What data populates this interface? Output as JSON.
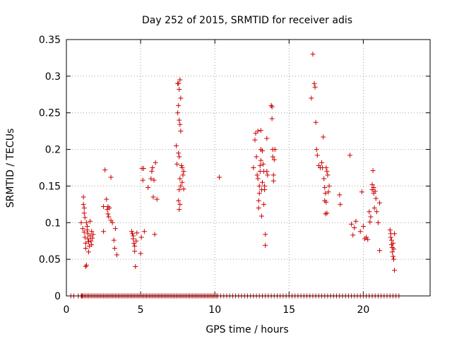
{
  "chart_data": {
    "type": "scatter",
    "title": "Day 252 of 2015, SRMTID for receiver adis",
    "xlabel": "GPS time / hours",
    "ylabel": "SRMTID / TECUs",
    "xlim": [
      0,
      24.5
    ],
    "ylim": [
      0,
      0.35
    ],
    "x_ticks": [
      0,
      5,
      10,
      15,
      20
    ],
    "x_tick_labels": [
      "0",
      "5",
      "10",
      "15",
      "20"
    ],
    "y_ticks": [
      0,
      0.05,
      0.1,
      0.15,
      0.2,
      0.25,
      0.3,
      0.35
    ],
    "y_tick_labels": [
      "0",
      "0.05",
      "0.1",
      "0.15",
      "0.2",
      "0.25",
      "0.3",
      "0.35"
    ],
    "grid": true,
    "marker": "+",
    "color": "#cc0000",
    "series": [
      {
        "name": "SRMTID",
        "points": [
          [
            1.0,
            0.1
          ],
          [
            1.1,
            0.092
          ],
          [
            1.15,
            0.135
          ],
          [
            1.15,
            0.125
          ],
          [
            1.2,
            0.12
          ],
          [
            1.2,
            0.113
          ],
          [
            1.25,
            0.107
          ],
          [
            1.2,
            0.087
          ],
          [
            1.25,
            0.08
          ],
          [
            1.3,
            0.072
          ],
          [
            1.3,
            0.065
          ],
          [
            1.3,
            0.04
          ],
          [
            1.35,
            0.042
          ],
          [
            1.35,
            0.1
          ],
          [
            1.4,
            0.095
          ],
          [
            1.4,
            0.09
          ],
          [
            1.45,
            0.085
          ],
          [
            1.45,
            0.078
          ],
          [
            1.5,
            0.074
          ],
          [
            1.5,
            0.06
          ],
          [
            1.55,
            0.068
          ],
          [
            1.6,
            0.102
          ],
          [
            1.6,
            0.082
          ],
          [
            1.65,
            0.075
          ],
          [
            1.7,
            0.088
          ],
          [
            1.7,
            0.07
          ],
          [
            1.75,
            0.079
          ],
          [
            1.8,
            0.084
          ],
          [
            2.5,
            0.122
          ],
          [
            2.6,
            0.172
          ],
          [
            2.7,
            0.132
          ],
          [
            2.75,
            0.118
          ],
          [
            2.8,
            0.122
          ],
          [
            2.8,
            0.112
          ],
          [
            2.85,
            0.108
          ],
          [
            2.9,
            0.12
          ],
          [
            3.0,
            0.162
          ],
          [
            3.0,
            0.103
          ],
          [
            3.1,
            0.1
          ],
          [
            3.2,
            0.076
          ],
          [
            3.25,
            0.065
          ],
          [
            3.3,
            0.092
          ],
          [
            3.4,
            0.056
          ],
          [
            2.5,
            0.088
          ],
          [
            4.4,
            0.088
          ],
          [
            4.45,
            0.085
          ],
          [
            4.5,
            0.082
          ],
          [
            4.5,
            0.078
          ],
          [
            4.55,
            0.072
          ],
          [
            4.6,
            0.068
          ],
          [
            4.6,
            0.061
          ],
          [
            4.65,
            0.04
          ],
          [
            4.7,
            0.075
          ],
          [
            4.75,
            0.086
          ],
          [
            5.0,
            0.058
          ],
          [
            5.05,
            0.08
          ],
          [
            5.1,
            0.174
          ],
          [
            5.15,
            0.158
          ],
          [
            5.2,
            0.174
          ],
          [
            5.25,
            0.088
          ],
          [
            5.5,
            0.148
          ],
          [
            5.7,
            0.16
          ],
          [
            5.75,
            0.17
          ],
          [
            5.8,
            0.175
          ],
          [
            5.85,
            0.135
          ],
          [
            5.9,
            0.158
          ],
          [
            5.95,
            0.084
          ],
          [
            6.0,
            0.182
          ],
          [
            6.1,
            0.132
          ],
          [
            7.4,
            0.205
          ],
          [
            7.45,
            0.18
          ],
          [
            7.5,
            0.29
          ],
          [
            7.5,
            0.25
          ],
          [
            7.55,
            0.29
          ],
          [
            7.55,
            0.26
          ],
          [
            7.6,
            0.282
          ],
          [
            7.6,
            0.24
          ],
          [
            7.65,
            0.295
          ],
          [
            7.65,
            0.234
          ],
          [
            7.7,
            0.27
          ],
          [
            7.7,
            0.225
          ],
          [
            7.55,
            0.195
          ],
          [
            7.6,
            0.19
          ],
          [
            7.65,
            0.16
          ],
          [
            7.7,
            0.15
          ],
          [
            7.75,
            0.178
          ],
          [
            7.8,
            0.175
          ],
          [
            7.8,
            0.155
          ],
          [
            7.85,
            0.165
          ],
          [
            7.9,
            0.146
          ],
          [
            7.9,
            0.17
          ],
          [
            7.55,
            0.13
          ],
          [
            7.6,
            0.118
          ],
          [
            7.65,
            0.125
          ],
          [
            7.6,
            0.145
          ],
          [
            10.3,
            0.162
          ],
          [
            12.6,
            0.175
          ],
          [
            12.7,
            0.213
          ],
          [
            12.75,
            0.222
          ],
          [
            12.8,
            0.19
          ],
          [
            12.85,
            0.165
          ],
          [
            12.9,
            0.225
          ],
          [
            12.9,
            0.16
          ],
          [
            12.95,
            0.13
          ],
          [
            12.95,
            0.12
          ],
          [
            13.0,
            0.15
          ],
          [
            13.0,
            0.14
          ],
          [
            13.05,
            0.17
          ],
          [
            13.05,
            0.178
          ],
          [
            13.1,
            0.185
          ],
          [
            13.1,
            0.226
          ],
          [
            13.1,
            0.2
          ],
          [
            13.15,
            0.145
          ],
          [
            13.15,
            0.109
          ],
          [
            13.2,
            0.198
          ],
          [
            13.2,
            0.155
          ],
          [
            13.25,
            0.18
          ],
          [
            13.3,
            0.17
          ],
          [
            13.35,
            0.15
          ],
          [
            13.35,
            0.145
          ],
          [
            13.4,
            0.084
          ],
          [
            13.4,
            0.069
          ],
          [
            13.5,
            0.215
          ],
          [
            13.5,
            0.17
          ],
          [
            13.55,
            0.165
          ],
          [
            13.8,
            0.26
          ],
          [
            13.85,
            0.258
          ],
          [
            13.85,
            0.242
          ],
          [
            13.9,
            0.2
          ],
          [
            13.9,
            0.19
          ],
          [
            13.95,
            0.165
          ],
          [
            13.95,
            0.157
          ],
          [
            14.0,
            0.186
          ],
          [
            14.05,
            0.2
          ],
          [
            13.3,
            0.125
          ],
          [
            16.5,
            0.27
          ],
          [
            16.6,
            0.33
          ],
          [
            16.7,
            0.29
          ],
          [
            16.75,
            0.285
          ],
          [
            16.8,
            0.237
          ],
          [
            16.85,
            0.2
          ],
          [
            16.9,
            0.192
          ],
          [
            17.0,
            0.178
          ],
          [
            17.1,
            0.175
          ],
          [
            17.2,
            0.182
          ],
          [
            17.25,
            0.175
          ],
          [
            17.3,
            0.217
          ],
          [
            17.35,
            0.16
          ],
          [
            17.4,
            0.148
          ],
          [
            17.4,
            0.13
          ],
          [
            17.45,
            0.14
          ],
          [
            17.45,
            0.112
          ],
          [
            17.5,
            0.175
          ],
          [
            17.5,
            0.128
          ],
          [
            17.55,
            0.17
          ],
          [
            17.55,
            0.113
          ],
          [
            17.6,
            0.165
          ],
          [
            17.65,
            0.142
          ],
          [
            17.7,
            0.15
          ],
          [
            18.4,
            0.138
          ],
          [
            18.45,
            0.125
          ],
          [
            19.1,
            0.192
          ],
          [
            19.2,
            0.098
          ],
          [
            19.3,
            0.083
          ],
          [
            19.4,
            0.093
          ],
          [
            19.5,
            0.102
          ],
          [
            19.8,
            0.088
          ],
          [
            19.9,
            0.142
          ],
          [
            20.0,
            0.095
          ],
          [
            20.1,
            0.078
          ],
          [
            20.2,
            0.08
          ],
          [
            20.3,
            0.077
          ],
          [
            20.4,
            0.115
          ],
          [
            20.45,
            0.101
          ],
          [
            20.5,
            0.108
          ],
          [
            20.6,
            0.152
          ],
          [
            20.6,
            0.145
          ],
          [
            20.65,
            0.171
          ],
          [
            20.7,
            0.148
          ],
          [
            20.7,
            0.14
          ],
          [
            20.75,
            0.12
          ],
          [
            20.8,
            0.143
          ],
          [
            20.85,
            0.133
          ],
          [
            20.9,
            0.115
          ],
          [
            21.0,
            0.1
          ],
          [
            21.1,
            0.062
          ],
          [
            21.1,
            0.127
          ],
          [
            21.8,
            0.09
          ],
          [
            21.85,
            0.085
          ],
          [
            21.85,
            0.08
          ],
          [
            21.9,
            0.076
          ],
          [
            21.9,
            0.07
          ],
          [
            21.95,
            0.066
          ],
          [
            21.95,
            0.06
          ],
          [
            22.0,
            0.072
          ],
          [
            22.0,
            0.054
          ],
          [
            22.05,
            0.05
          ],
          [
            22.05,
            0.064
          ],
          [
            22.1,
            0.035
          ],
          [
            22.1,
            0.085
          ]
        ],
        "zero_points_x": [
          0.3,
          0.5,
          0.8,
          1.0,
          1.05,
          1.1,
          1.2,
          1.3,
          1.4,
          1.5,
          1.6,
          1.7,
          1.8,
          1.9,
          2.0,
          2.1,
          2.2,
          2.3,
          2.4,
          2.5,
          2.6,
          2.7,
          2.8,
          2.9,
          3.0,
          3.1,
          3.2,
          3.3,
          3.4,
          3.5,
          3.6,
          3.7,
          3.8,
          3.9,
          4.0,
          4.1,
          4.2,
          4.3,
          4.4,
          4.5,
          4.6,
          4.7,
          4.8,
          4.9,
          5.0,
          5.1,
          5.2,
          5.3,
          5.4,
          5.5,
          5.6,
          5.7,
          5.8,
          5.9,
          6.0,
          6.1,
          6.2,
          6.3,
          6.4,
          6.5,
          6.6,
          6.7,
          6.8,
          6.9,
          7.0,
          7.1,
          7.2,
          7.3,
          7.4,
          7.5,
          7.6,
          7.7,
          7.8,
          7.9,
          8.0,
          8.1,
          8.2,
          8.3,
          8.4,
          8.5,
          8.6,
          8.7,
          8.8,
          8.9,
          9.0,
          9.1,
          9.2,
          9.3,
          9.4,
          9.5,
          9.6,
          9.7,
          9.8,
          9.9,
          10.0,
          10.1,
          10.2,
          10.4,
          10.6,
          10.8,
          11.0,
          11.2,
          11.4,
          11.6,
          11.8,
          12.0,
          12.2,
          12.4,
          12.6,
          12.8,
          13.0,
          13.2,
          13.4,
          13.6,
          13.8,
          14.0,
          14.2,
          14.4,
          14.6,
          14.8,
          15.0,
          15.2,
          15.4,
          15.6,
          15.8,
          16.0,
          16.2,
          16.4,
          16.6,
          16.8,
          17.0,
          17.2,
          17.4,
          17.6,
          17.8,
          18.0,
          18.2,
          18.4,
          18.6,
          18.8,
          19.0,
          19.2,
          19.4,
          19.6,
          19.8,
          20.0,
          20.2,
          20.4,
          20.6,
          20.8,
          21.0,
          21.2,
          21.4,
          21.6,
          21.8,
          22.0,
          22.2,
          22.4
        ]
      }
    ]
  }
}
